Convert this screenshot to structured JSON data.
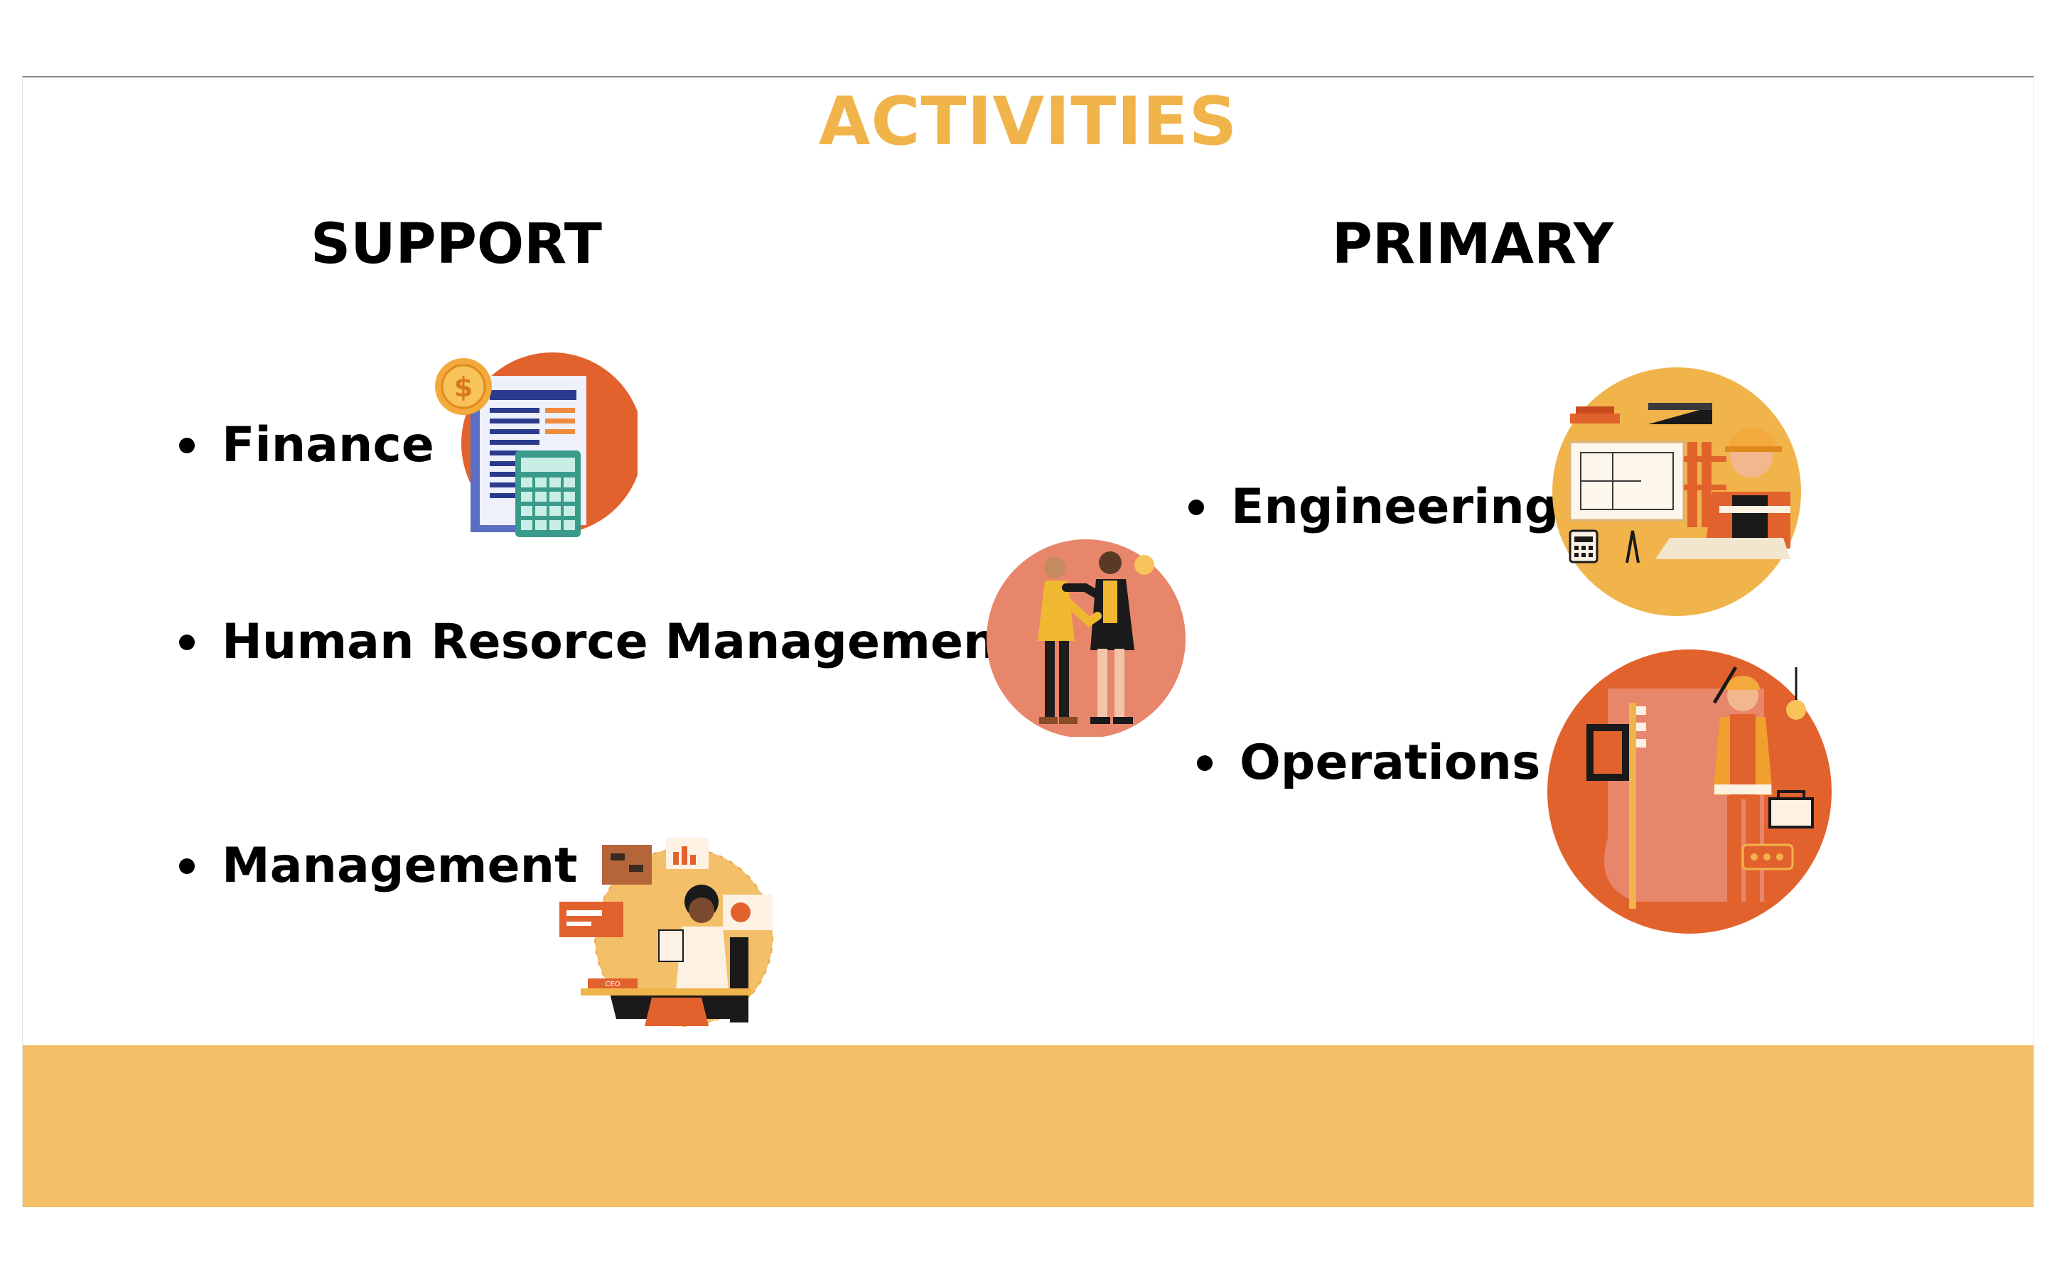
{
  "slide": {
    "title": "ACTIVITIES",
    "support_heading": "SUPPORT",
    "primary_heading": "PRIMARY",
    "support_items": [
      {
        "label": "Finance",
        "icon": "finance-calculator-icon"
      },
      {
        "label": "Human Resorce Management",
        "icon": "handshake-icon"
      },
      {
        "label": "Management",
        "icon": "ceo-desk-icon"
      }
    ],
    "primary_items": [
      {
        "label": "Engineering",
        "icon": "engineer-blueprint-icon"
      },
      {
        "label": "Operations",
        "icon": "electrician-worker-icon"
      }
    ]
  },
  "colors": {
    "title": "#f0b44a",
    "footer_band": "#f3bf68",
    "orange": "#e2622e",
    "salmon": "#e8866b",
    "yellow": "#f0b44a"
  }
}
